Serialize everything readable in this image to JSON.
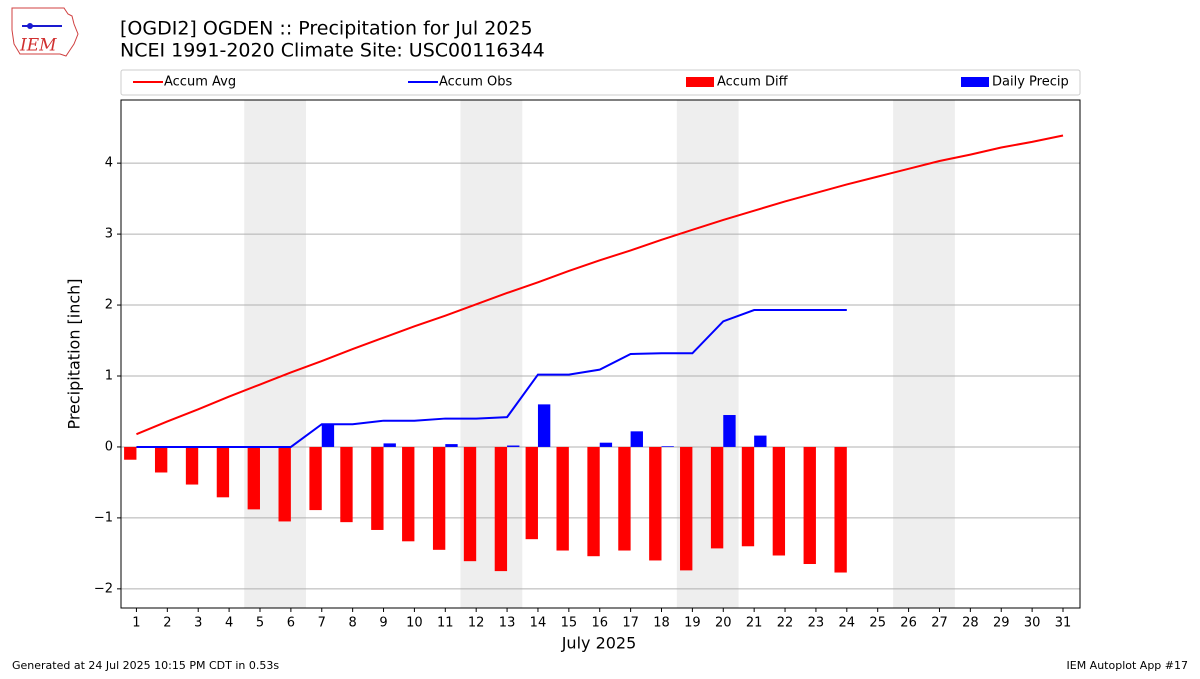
{
  "chart_data": {
    "type": "combo",
    "title": "[OGDI2] OGDEN :: Precipitation for Jul 2025",
    "subtitle": "NCEI 1991-2020 Climate Site: USC00116344",
    "xlabel": "July 2025",
    "ylabel": "Precipitation [inch]",
    "footer_left": "Generated at 24 Jul 2025 10:15 PM CDT in 0.53s",
    "footer_right": "IEM Autoplot App #17",
    "logo_text": "IEM",
    "legend": "top",
    "grid": "y",
    "x": [
      1,
      2,
      3,
      4,
      5,
      6,
      7,
      8,
      9,
      10,
      11,
      12,
      13,
      14,
      15,
      16,
      17,
      18,
      19,
      20,
      21,
      22,
      23,
      24,
      25,
      26,
      27,
      28,
      29,
      30,
      31
    ],
    "xlim": [
      0.5,
      31.55
    ],
    "xticks": [
      1,
      2,
      3,
      4,
      5,
      6,
      7,
      8,
      9,
      10,
      11,
      12,
      13,
      14,
      15,
      16,
      17,
      18,
      19,
      20,
      21,
      22,
      23,
      24,
      25,
      26,
      27,
      28,
      29,
      30,
      31
    ],
    "ylim": [
      -2.27,
      4.89
    ],
    "yticks": [
      {
        "value": -2,
        "label": "−2"
      },
      {
        "value": -1,
        "label": "−1"
      },
      0,
      1,
      2,
      3,
      4
    ],
    "series": [
      {
        "name": "Accum Avg",
        "kind": "line",
        "color": "#ff0000",
        "values": [
          0.18,
          0.36,
          0.53,
          0.71,
          0.88,
          1.05,
          1.21,
          1.38,
          1.54,
          1.7,
          1.85,
          2.01,
          2.17,
          2.32,
          2.48,
          2.63,
          2.77,
          2.92,
          3.06,
          3.2,
          3.33,
          3.46,
          3.58,
          3.7,
          3.81,
          3.92,
          4.03,
          4.12,
          4.22,
          4.3,
          4.39
        ]
      },
      {
        "name": "Accum Obs",
        "kind": "line",
        "color": "#0000ff",
        "values": [
          0,
          0,
          0,
          0,
          0,
          0,
          0.32,
          0.32,
          0.37,
          0.37,
          0.4,
          0.4,
          0.42,
          1.02,
          1.02,
          1.09,
          1.31,
          1.32,
          1.32,
          1.77,
          1.93,
          1.93,
          1.93,
          1.93,
          null,
          null,
          null,
          null,
          null,
          null,
          null
        ]
      },
      {
        "name": "Accum Diff",
        "kind": "bar",
        "color": "#ff0000",
        "offset": -0.2,
        "values": [
          -0.18,
          -0.36,
          -0.53,
          -0.71,
          -0.88,
          -1.05,
          -0.89,
          -1.06,
          -1.17,
          -1.33,
          -1.45,
          -1.61,
          -1.75,
          -1.3,
          -1.46,
          -1.54,
          -1.46,
          -1.6,
          -1.74,
          -1.43,
          -1.4,
          -1.53,
          -1.65,
          -1.77,
          null,
          null,
          null,
          null,
          null,
          null,
          null
        ]
      },
      {
        "name": "Daily Precip",
        "kind": "bar",
        "color": "#0000ff",
        "offset": 0.2,
        "values": [
          0,
          0,
          0,
          0,
          0,
          0,
          0.32,
          0,
          0.05,
          0,
          0.04,
          0,
          0.02,
          0.6,
          0,
          0.06,
          0.22,
          0.01,
          0,
          0.45,
          0.16,
          0,
          0,
          0,
          null,
          null,
          null,
          null,
          null,
          null,
          null
        ]
      }
    ]
  }
}
